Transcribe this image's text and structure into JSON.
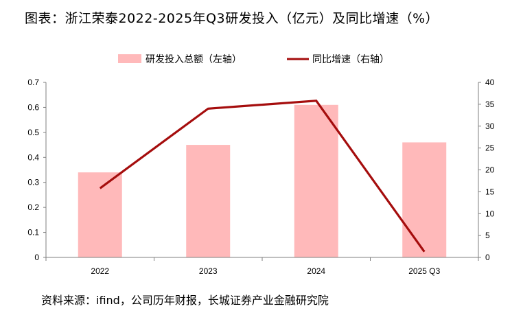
{
  "title": "图表：浙江荣泰2022-2025年Q3研发投入（亿元）及同比增速（%）",
  "source": "资料来源：ifind，公司历年财报，长城证券产业金融研究院",
  "colors": {
    "bar": "#ffb9ba",
    "line": "#a50d0d",
    "axis": "#7f7f7f"
  },
  "chart_data": {
    "type": "bar",
    "categories": [
      "2022",
      "2023",
      "2024",
      "2025 Q3"
    ],
    "series": [
      {
        "name": "研发投入总额（左轴）",
        "type": "bar",
        "axis": "left",
        "values": [
          0.34,
          0.45,
          0.61,
          0.46
        ]
      },
      {
        "name": "同比增速（右轴）",
        "type": "line",
        "axis": "right",
        "values": [
          15.8,
          34.0,
          35.8,
          1.3
        ]
      }
    ],
    "y_left": {
      "lim": [
        0,
        0.7
      ],
      "ticks": [
        "0",
        "0.1",
        "0.2",
        "0.3",
        "0.4",
        "0.5",
        "0.6",
        "0.7"
      ]
    },
    "y_right": {
      "lim": [
        0,
        40
      ],
      "ticks": [
        "0",
        "5",
        "10",
        "15",
        "20",
        "25",
        "30",
        "35",
        "40"
      ]
    },
    "legend_position": "top-center",
    "grid": false
  }
}
